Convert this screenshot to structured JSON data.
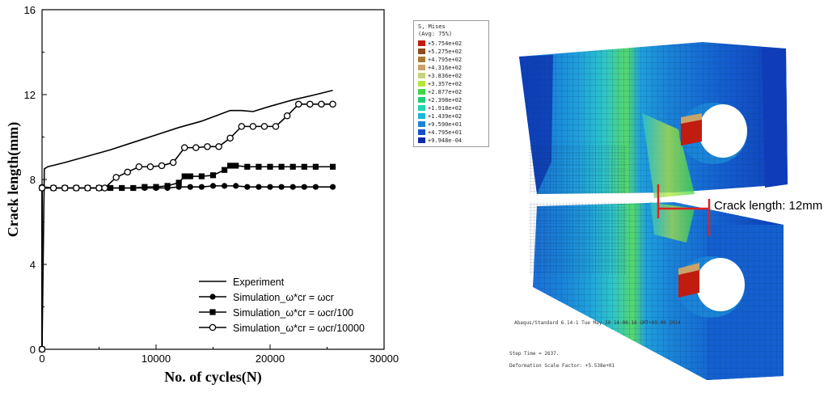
{
  "chart_data": {
    "type": "line",
    "title": "",
    "xlabel": "No. of cycles(N)",
    "ylabel": "Crack length(mm)",
    "xlim": [
      0,
      30000
    ],
    "ylim": [
      0,
      16
    ],
    "xticks": [
      0,
      10000,
      20000,
      30000
    ],
    "yticks": [
      0,
      4,
      8,
      12,
      16
    ],
    "legend_position": "bottom-right",
    "series": [
      {
        "name": "Experiment",
        "marker": "none",
        "x": [
          0,
          200,
          500,
          2000,
          4000,
          6000,
          8000,
          10000,
          12000,
          14000,
          16500,
          17500,
          18500,
          20000,
          22000,
          24000,
          25500
        ],
        "y": [
          0,
          8.5,
          8.6,
          8.8,
          9.1,
          9.4,
          9.75,
          10.1,
          10.45,
          10.75,
          11.25,
          11.25,
          11.2,
          11.45,
          11.75,
          12.0,
          12.2
        ]
      },
      {
        "name": "Simulation_ω*cr = ωcr",
        "marker": "filled-circle",
        "x": [
          0,
          0,
          0,
          1000,
          2000,
          3000,
          4000,
          5000,
          6000,
          7000,
          8000,
          9000,
          10000,
          11000,
          12000,
          13000,
          14000,
          15000,
          16000,
          17000,
          18000,
          19000,
          20000,
          21000,
          22000,
          23000,
          24000,
          25500
        ],
        "y": [
          0,
          0,
          7.65,
          7.6,
          7.6,
          7.6,
          7.6,
          7.6,
          7.6,
          7.6,
          7.6,
          7.6,
          7.6,
          7.6,
          7.65,
          7.65,
          7.65,
          7.7,
          7.7,
          7.7,
          7.65,
          7.65,
          7.65,
          7.65,
          7.65,
          7.65,
          7.65,
          7.65
        ]
      },
      {
        "name": "Simulation_ω*cr = ωcr/100",
        "marker": "filled-square",
        "x": [
          0,
          0,
          0,
          1000,
          2000,
          3000,
          4000,
          5000,
          6000,
          7000,
          8000,
          9000,
          10000,
          11000,
          12000,
          12500,
          13000,
          14000,
          15000,
          16000,
          16500,
          17000,
          18000,
          19000,
          20000,
          21000,
          22000,
          23000,
          24000,
          25500
        ],
        "y": [
          0,
          0,
          7.6,
          7.6,
          7.6,
          7.6,
          7.6,
          7.6,
          7.6,
          7.6,
          7.6,
          7.65,
          7.65,
          7.7,
          7.85,
          8.15,
          8.15,
          8.15,
          8.2,
          8.45,
          8.65,
          8.65,
          8.6,
          8.6,
          8.6,
          8.6,
          8.6,
          8.6,
          8.6,
          8.6
        ]
      },
      {
        "name": "Simulation_ω*cr = ωcr/10000",
        "marker": "open-circle",
        "x": [
          0,
          0,
          0,
          1000,
          2000,
          3000,
          4000,
          5000,
          5500,
          6500,
          7500,
          8500,
          9500,
          10500,
          11500,
          12500,
          13500,
          14500,
          15500,
          16500,
          17500,
          18500,
          19500,
          20500,
          21500,
          22500,
          23500,
          24500,
          25500
        ],
        "y": [
          0,
          0,
          7.6,
          7.6,
          7.6,
          7.6,
          7.6,
          7.6,
          7.6,
          8.1,
          8.35,
          8.6,
          8.6,
          8.65,
          8.8,
          9.5,
          9.5,
          9.55,
          9.55,
          9.95,
          10.5,
          10.5,
          10.5,
          10.5,
          11.0,
          11.55,
          11.55,
          11.55,
          11.55
        ]
      }
    ]
  },
  "stress_legend": {
    "title_line1": "S, Mises",
    "title_line2": "(Avg: 75%)",
    "entries": [
      {
        "label": "+5.754e+02",
        "color": "#c01c10"
      },
      {
        "label": "+5.275e+02",
        "color": "#8c4a1e"
      },
      {
        "label": "+4.795e+02",
        "color": "#a9792f"
      },
      {
        "label": "+4.316e+02",
        "color": "#c9a36a"
      },
      {
        "label": "+3.836e+02",
        "color": "#c9d27c"
      },
      {
        "label": "+3.357e+02",
        "color": "#b5e63a"
      },
      {
        "label": "+2.877e+02",
        "color": "#3fd84a"
      },
      {
        "label": "+2.398e+02",
        "color": "#1fcf7a"
      },
      {
        "label": "+1.918e+02",
        "color": "#20d6b0"
      },
      {
        "label": "+1.439e+02",
        "color": "#19b6d6"
      },
      {
        "label": "+9.590e+01",
        "color": "#1a84d8"
      },
      {
        "label": "+4.795e+01",
        "color": "#1450c8"
      },
      {
        "label": "+9.948e-04",
        "color": "#0b2aa8"
      }
    ]
  },
  "fea_model": {
    "crack_label": "Crack length: 12mm",
    "footer_line1": "Abaqus/Standard 6.14-1    Tue May 20 14:06:16 GMT+09:00 2014",
    "footer_line2": "Step Time =    2637.",
    "footer_line3": "Deformation Scale Factor: +5.538e+01"
  }
}
